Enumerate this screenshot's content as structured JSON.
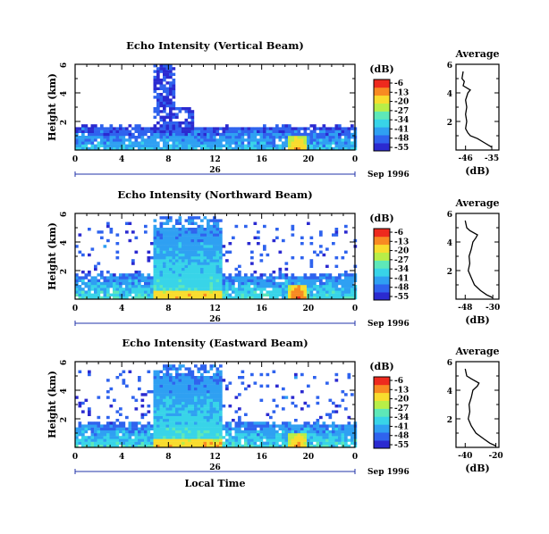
{
  "figure": {
    "date_label": "Sep 1996",
    "x_axis_label": "Local Time",
    "colorbar_unit": "(dB)",
    "colorbar_ticks": [
      "-6",
      "-13",
      "-20",
      "-27",
      "-34",
      "-41",
      "-48",
      "-55"
    ],
    "colormap": [
      "#2b2ad0",
      "#2f63ee",
      "#2fa0f2",
      "#38d4e8",
      "#5ee8b8",
      "#b8ee48",
      "#f8dc2e",
      "#f88a22",
      "#ee2a1e"
    ],
    "average_title": "Average"
  },
  "chart_data": [
    {
      "type": "heatmap",
      "title": "Echo Intensity (Vertical Beam)",
      "ylabel": "Height (km)",
      "xlabel": "",
      "x_ticks": [
        "0",
        "4",
        "8",
        "12",
        "16",
        "20",
        "0"
      ],
      "date_tick": "26",
      "y_ticks": [
        "6",
        "4",
        "2"
      ],
      "xlim_hours": [
        0,
        24
      ],
      "ylim_km": [
        0,
        6
      ],
      "zlim_db": [
        -55,
        -6
      ],
      "features": [
        {
          "kind": "layer",
          "t0": 0,
          "t1": 24,
          "h_top": 1.4,
          "db": -44
        },
        {
          "kind": "plume",
          "t0": 6.5,
          "t1": 8.5,
          "h_top": 5.9,
          "db": -46
        },
        {
          "kind": "hot_spot",
          "t": 19,
          "h": 0.4,
          "db": -12
        }
      ],
      "average_profile": {
        "title": "Average",
        "xlabel": "(dB)",
        "x_ticks": [
          "-46",
          "-35"
        ],
        "xlim": [
          -50,
          -32
        ],
        "y_ticks": [
          "6",
          "4",
          "2"
        ],
        "height_km": [
          0.2,
          0.5,
          0.8,
          1.0,
          1.2,
          1.5,
          2.0,
          2.5,
          3.0,
          3.5,
          4.0,
          4.2,
          4.5,
          4.8,
          5.0,
          5.5
        ],
        "db": [
          -35,
          -38,
          -41,
          -44,
          -45,
          -46,
          -45.5,
          -46,
          -45.5,
          -46,
          -45,
          -44,
          -47,
          -46.5,
          -47.5,
          -47
        ]
      }
    },
    {
      "type": "heatmap",
      "title": "Echo Intensity (Northward Beam)",
      "ylabel": "Height (km)",
      "xlabel": "",
      "x_ticks": [
        "0",
        "4",
        "8",
        "12",
        "16",
        "20",
        "0"
      ],
      "date_tick": "26",
      "y_ticks": [
        "6",
        "4",
        "2"
      ],
      "xlim_hours": [
        0,
        24
      ],
      "ylim_km": [
        0,
        6
      ],
      "zlim_db": [
        -55,
        -6
      ],
      "features": [
        {
          "kind": "layer",
          "t0": 0,
          "t1": 24,
          "h_top": 1.5,
          "db": -40
        },
        {
          "kind": "tall_block",
          "t0": 6.5,
          "t1": 12.5,
          "h_top": 5.7,
          "db": -30
        },
        {
          "kind": "hot_spot",
          "t": 19,
          "h": 0.4,
          "db": -8
        }
      ],
      "average_profile": {
        "title": "Average",
        "xlabel": "(dB)",
        "x_ticks": [
          "-48",
          "-30"
        ],
        "xlim": [
          -54,
          -26
        ],
        "y_ticks": [
          "6",
          "4",
          "2"
        ],
        "height_km": [
          0.1,
          0.3,
          0.6,
          1.0,
          1.5,
          2.0,
          2.5,
          3.0,
          3.5,
          4.0,
          4.3,
          4.5,
          4.8,
          5.0,
          5.5
        ],
        "db": [
          -30,
          -34,
          -38,
          -42,
          -44,
          -46,
          -45,
          -45.5,
          -44,
          -43,
          -41,
          -40,
          -45,
          -47,
          -48
        ]
      }
    },
    {
      "type": "heatmap",
      "title": "Echo Intensity (Eastward Beam)",
      "ylabel": "Height (km)",
      "xlabel": "Local Time",
      "x_ticks": [
        "0",
        "4",
        "8",
        "12",
        "16",
        "20",
        "0"
      ],
      "date_tick": "26",
      "y_ticks": [
        "6",
        "4",
        "2"
      ],
      "xlim_hours": [
        0,
        24
      ],
      "ylim_km": [
        0,
        6
      ],
      "zlim_db": [
        -55,
        -6
      ],
      "features": [
        {
          "kind": "layer",
          "t0": 0,
          "t1": 24,
          "h_top": 1.5,
          "db": -40
        },
        {
          "kind": "tall_block",
          "t0": 6.5,
          "t1": 12.5,
          "h_top": 5.7,
          "db": -30
        },
        {
          "kind": "hot_spot",
          "t": 19,
          "h": 0.4,
          "db": -12
        }
      ],
      "average_profile": {
        "title": "Average",
        "xlabel": "(dB)",
        "x_ticks": [
          "-40",
          "-20"
        ],
        "xlim": [
          -46,
          -18
        ],
        "y_ticks": [
          "6",
          "4",
          "2"
        ],
        "height_km": [
          0.1,
          0.3,
          0.6,
          1.0,
          1.5,
          2.0,
          2.5,
          3.0,
          3.5,
          4.0,
          4.3,
          4.5,
          4.8,
          5.0,
          5.5
        ],
        "db": [
          -20,
          -24,
          -28,
          -33,
          -36,
          -38,
          -37,
          -37.5,
          -36,
          -35,
          -32,
          -31,
          -36,
          -39,
          -40
        ]
      }
    }
  ]
}
